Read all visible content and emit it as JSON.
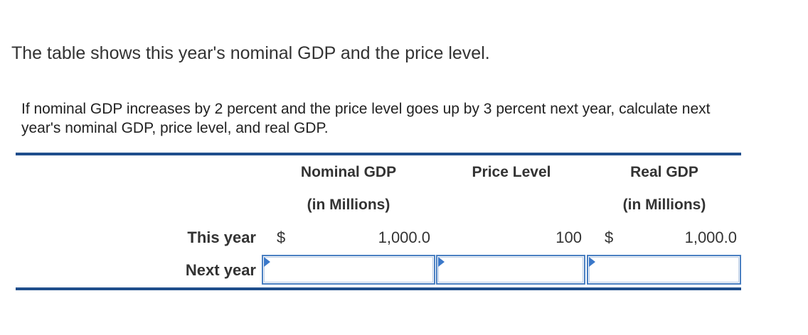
{
  "intro_text": "The table shows this year's nominal GDP and the price level.",
  "instruction_text": "If nominal GDP increases by 2 percent and the price level goes up by 3 percent next year, calculate next year's nominal GDP, price level, and real GDP.",
  "table": {
    "headers": {
      "nominal_gdp": "Nominal GDP",
      "nominal_gdp_unit": "(in Millions)",
      "price_level": "Price Level",
      "real_gdp": "Real GDP",
      "real_gdp_unit": "(in Millions)"
    },
    "rows": [
      {
        "label": "This year",
        "nominal_currency": "$",
        "nominal_gdp": "1,000.0",
        "price_level": "100",
        "real_currency": "$",
        "real_gdp": "1,000.0"
      },
      {
        "label": "Next year",
        "nominal_gdp": "",
        "price_level": "",
        "real_gdp": ""
      }
    ]
  },
  "colors": {
    "rule": "#1f4e8c",
    "input_border": "#4a7fc1",
    "input_marker": "#3b78c9"
  }
}
